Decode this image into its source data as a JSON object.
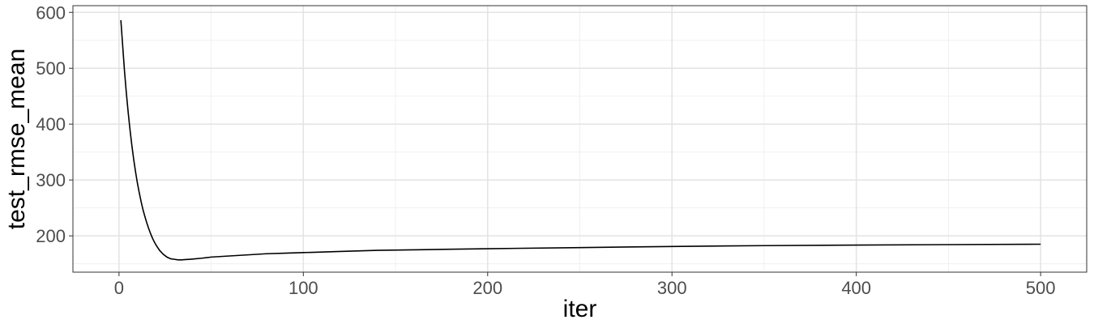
{
  "chart_data": {
    "type": "line",
    "xlabel": "iter",
    "ylabel": "test_rmse_mean",
    "xlim": [
      -25,
      525
    ],
    "ylim": [
      135,
      612
    ],
    "x_ticks": [
      0,
      100,
      200,
      300,
      400,
      500
    ],
    "y_ticks": [
      200,
      300,
      400,
      500,
      600
    ],
    "grid": true,
    "line_color": "#000000",
    "series": [
      {
        "x": [
          1,
          2,
          3,
          4,
          5,
          6,
          7,
          8,
          9,
          10,
          11,
          12,
          13,
          14,
          15,
          16,
          17,
          18,
          19,
          20,
          22,
          24,
          26,
          28,
          30,
          32,
          34,
          36,
          38,
          40,
          45,
          50,
          60,
          70,
          80,
          90,
          100,
          120,
          140,
          160,
          180,
          200,
          250,
          300,
          350,
          400,
          450,
          500
        ],
        "values": [
          586,
          540,
          494,
          455,
          420,
          389,
          361,
          336,
          314,
          294,
          277,
          261,
          247,
          235,
          224,
          214,
          205,
          197,
          190,
          184,
          174,
          167,
          162,
          159,
          158,
          157,
          157,
          157.5,
          158,
          158.5,
          160,
          162,
          164,
          166,
          168,
          169,
          170,
          172,
          174,
          175,
          176,
          177,
          179,
          181,
          182.5,
          183.5,
          184.3,
          185
        ]
      }
    ]
  }
}
